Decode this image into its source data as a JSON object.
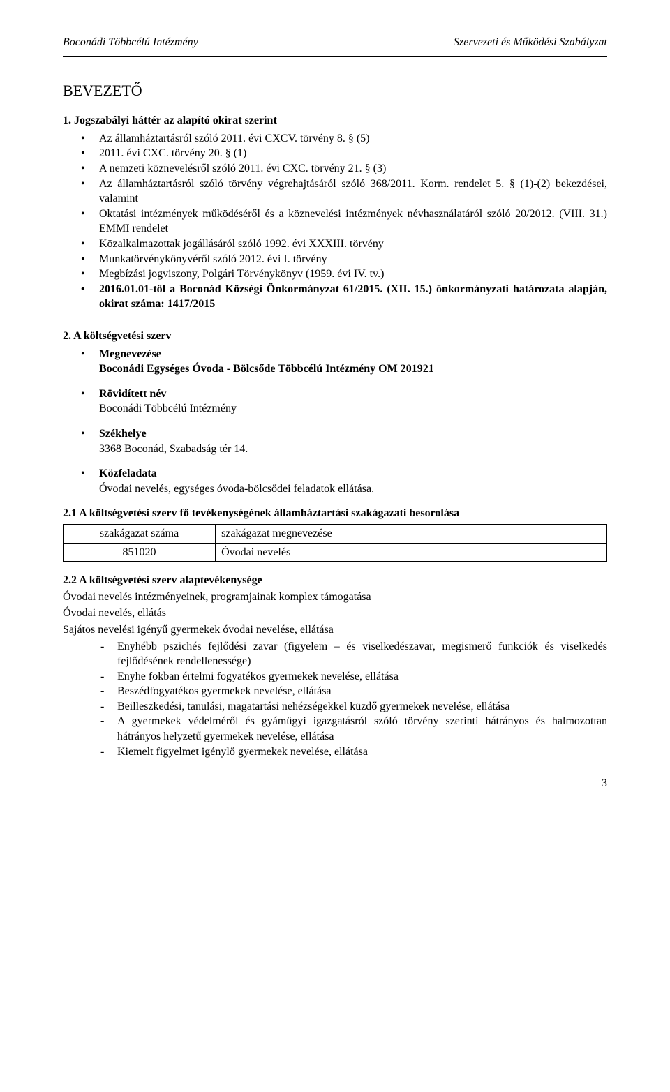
{
  "header": {
    "left": "Boconádi Többcélú Intézmény",
    "right": "Szervezeti és Működési Szabályzat"
  },
  "title": "BEVEZETŐ",
  "section1": {
    "heading": "1. Jogszabályi háttér az alapító okirat szerint",
    "items": [
      "Az államháztartásról szóló 2011. évi CXCV. törvény 8. § (5)",
      "2011. évi CXC. törvény 20. § (1)",
      "A nemzeti köznevelésről szóló 2011. évi CXC. törvény 21. § (3)",
      "Az államháztartásról szóló törvény végrehajtásáról szóló 368/2011. Korm. rendelet 5. § (1)-(2) bekezdései, valamint",
      "Oktatási intézmények működéséről és a köznevelési intézmények névhasználatáról szóló 20/2012. (VIII. 31.) EMMI rendelet",
      "Közalkalmazottak jogállásáról szóló 1992. évi XXXIII. törvény",
      "Munkatörvénykönyvéről szóló 2012. évi I. törvény",
      "Megbízási jogviszony, Polgári Törvénykönyv (1959. évi IV. tv.)",
      "2016.01.01-től a Boconád Községi Önkormányzat 61/2015. (XII. 15.) önkormányzati határozata alapján, okirat száma: 1417/2015"
    ]
  },
  "section2": {
    "heading": "2. A költségvetési szerv",
    "blocks": [
      {
        "label": "Megnevezése",
        "value": "Boconádi Egységes Óvoda - Bölcsőde Többcélú Intézmény OM 201921"
      },
      {
        "label": "Rövidített név",
        "value": "Boconádi Többcélú Intézmény"
      },
      {
        "label": "Székhelye",
        "value": "3368 Boconád, Szabadság tér 14."
      },
      {
        "label": "Közfeladata",
        "value": "Óvodai nevelés, egységes óvoda-bölcsődei feladatok ellátása."
      }
    ]
  },
  "section21": {
    "heading": "2.1 A költségvetési szerv fő tevékenységének államháztartási szakágazati besorolása",
    "table": {
      "headers": [
        "szakágazat száma",
        "szakágazat megnevezése"
      ],
      "rows": [
        [
          "851020",
          "Óvodai nevelés"
        ]
      ]
    }
  },
  "section22": {
    "heading": "2.2 A költségvetési szerv alaptevékenysége",
    "lines": [
      "Óvodai nevelés intézményeinek, programjainak komplex támogatása",
      "Óvodai nevelés, ellátás",
      "Sajátos nevelési igényű gyermekek óvodai nevelése, ellátása"
    ],
    "dashes": [
      "Enyhébb pszichés fejlődési zavar (figyelem – és viselkedészavar, megismerő funkciók és viselkedés fejlődésének rendellenessége)",
      "Enyhe fokban értelmi fogyatékos gyermekek nevelése, ellátása",
      "Beszédfogyatékos gyermekek nevelése, ellátása",
      "Beilleszkedési, tanulási, magatartási nehézségekkel küzdő gyermekek nevelése, ellátása",
      "A gyermekek védelméről és gyámügyi igazgatásról szóló törvény szerinti hátrányos és halmozottan hátrányos helyzetű gyermekek nevelése, ellátása",
      "Kiemelt figyelmet igénylő gyermekek nevelése, ellátása"
    ]
  },
  "pageNumber": "3"
}
